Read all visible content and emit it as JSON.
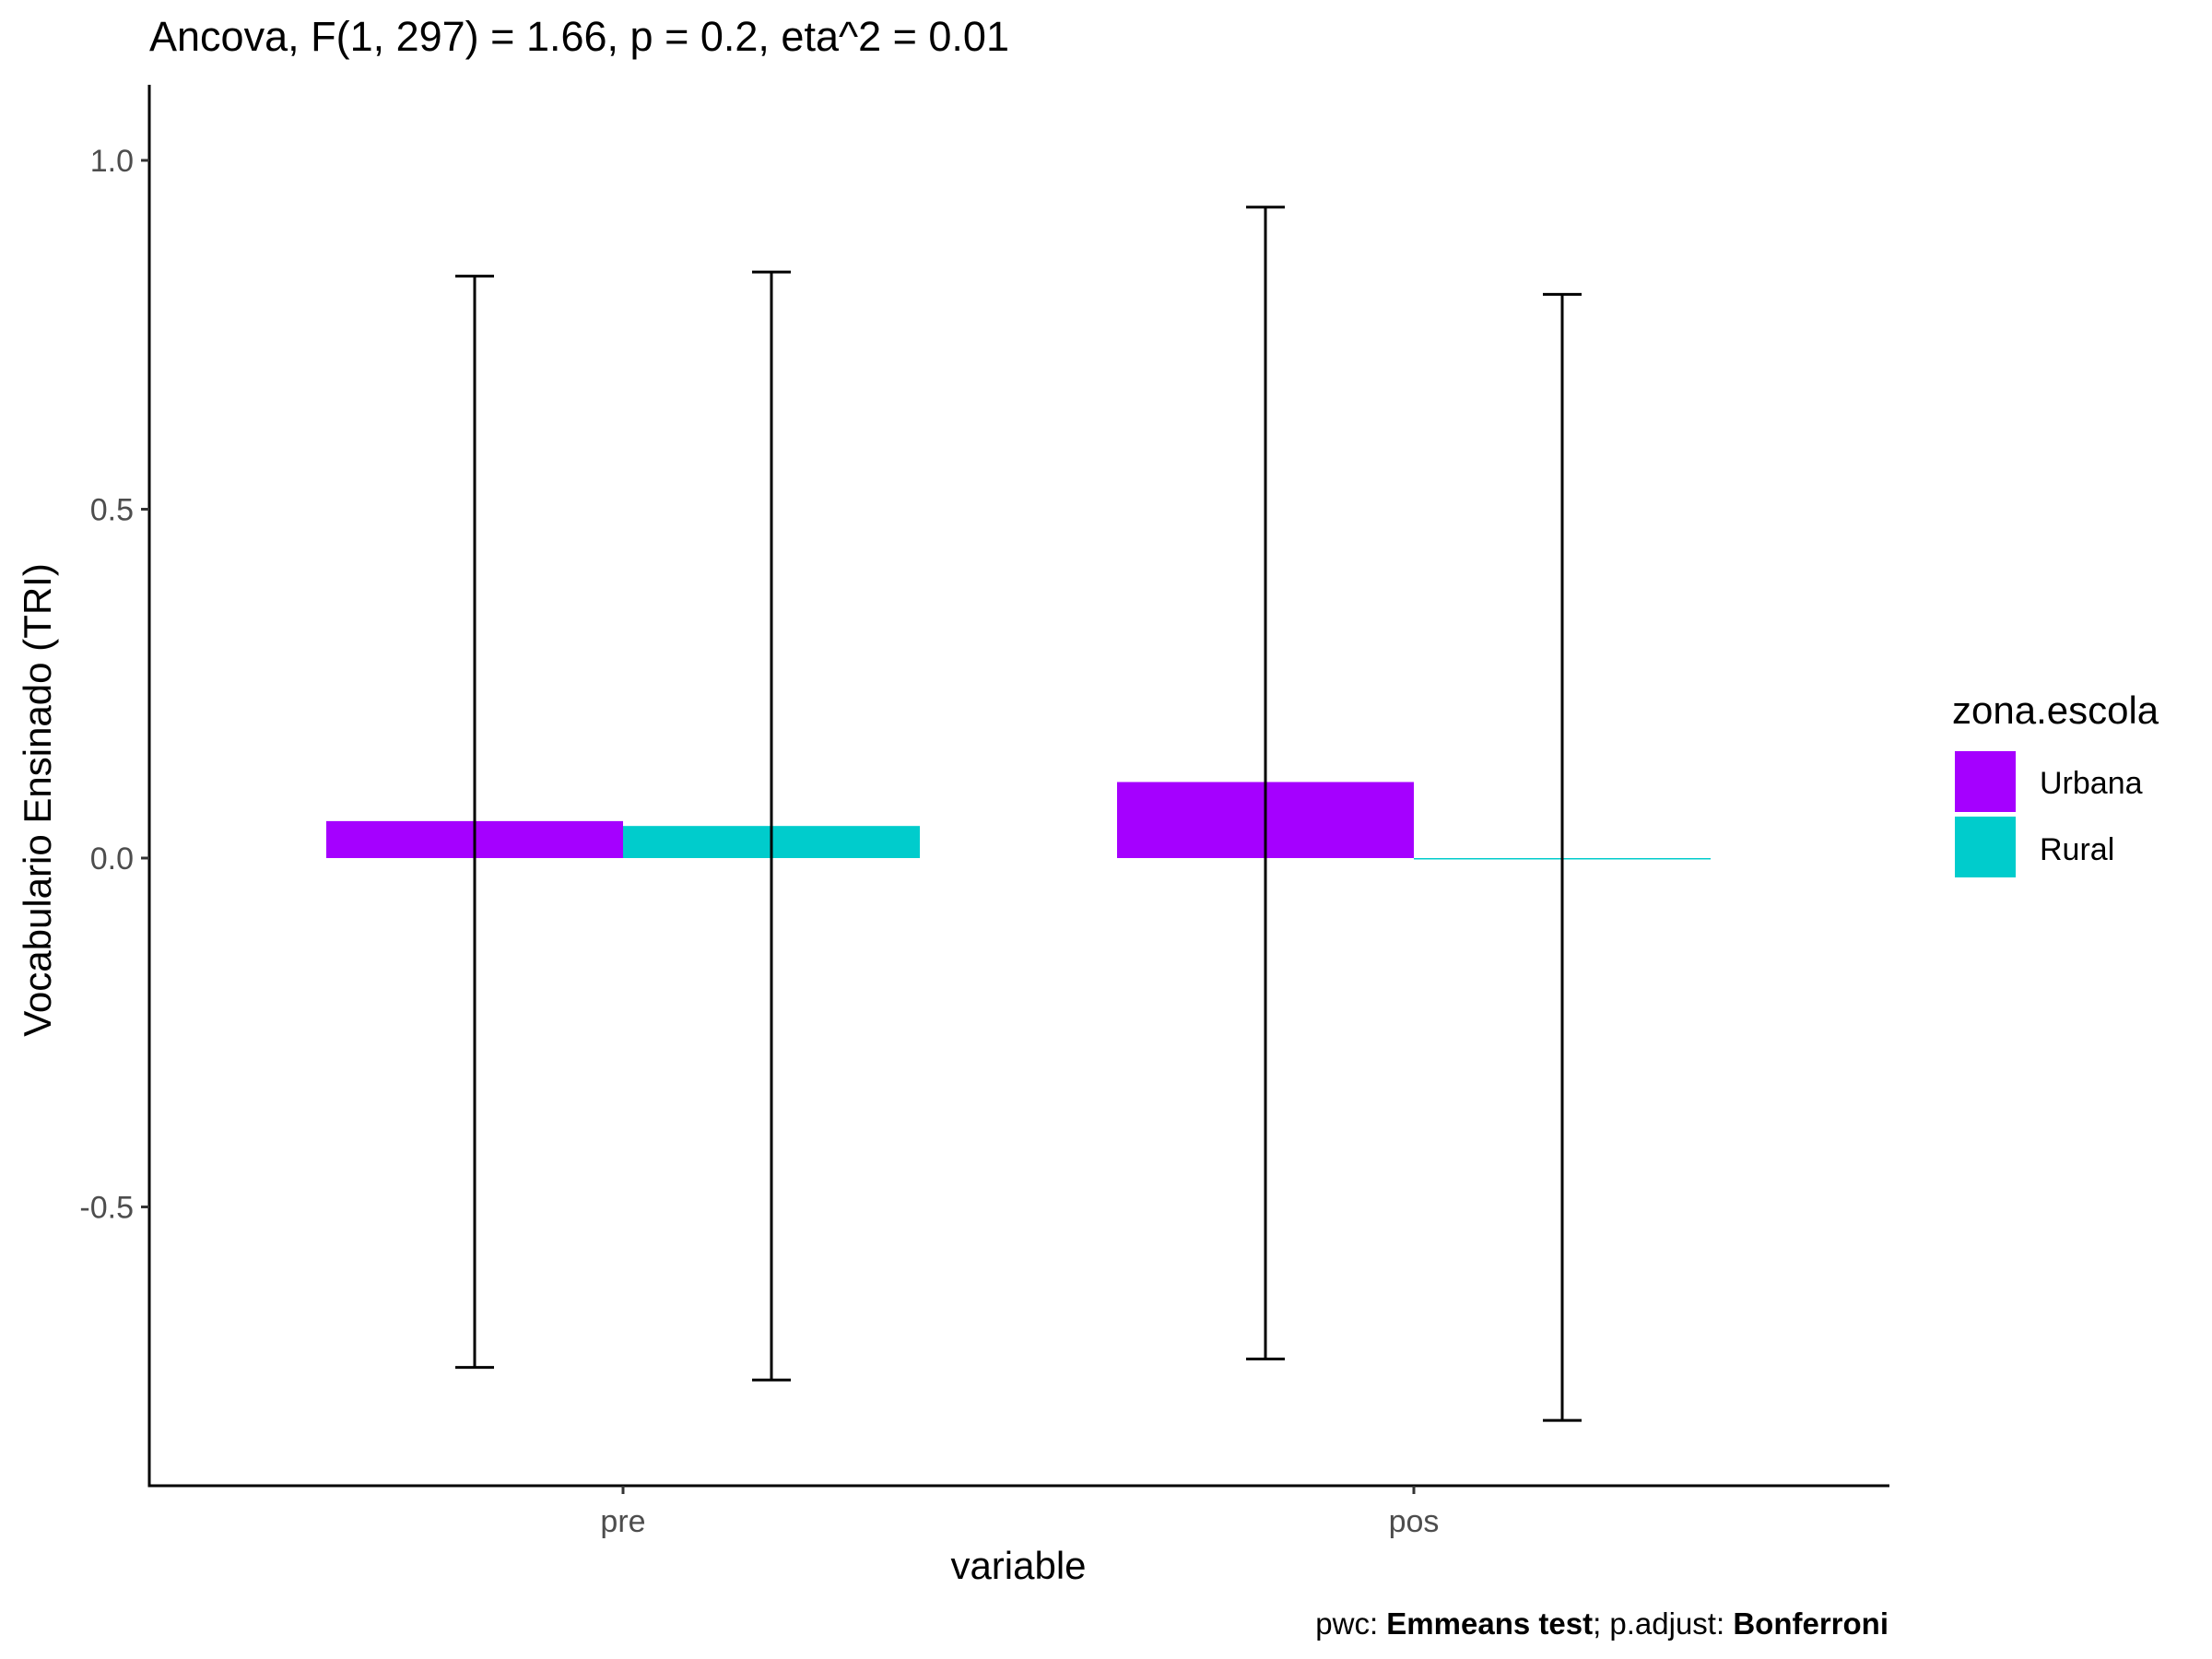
{
  "chart_data": {
    "type": "bar",
    "title": "Ancova, F(1, 297) = 1.66, p = 0.2, eta^2 = 0.01",
    "xlabel": "variable",
    "ylabel": "Vocabulario Ensinado (TRI)",
    "categories": [
      "pre",
      "pos"
    ],
    "ylim": [
      -0.89,
      1.1
    ],
    "yticks": [
      {
        "value": 1.0,
        "label": "1.0"
      },
      {
        "value": 0.5,
        "label": "0.5"
      },
      {
        "value": 0.0,
        "label": "0.0"
      },
      {
        "value": -0.5,
        "label": "-0.5"
      }
    ],
    "grid": false,
    "legend": {
      "title": "zona.escola",
      "position": "right"
    },
    "series": [
      {
        "name": "Urbana",
        "color": "#a500ff",
        "values": [
          0.053,
          0.109
        ],
        "error_low": [
          -0.73,
          -0.718
        ],
        "error_high": [
          0.834,
          0.933
        ]
      },
      {
        "name": "Rural",
        "color": "#00cccc",
        "values": [
          0.046,
          -0.001
        ],
        "error_low": [
          -0.748,
          -0.806
        ],
        "error_high": [
          0.84,
          0.808
        ]
      }
    ],
    "caption": {
      "pwc_prefix": "pwc: ",
      "pwc_value": "Emmeans test",
      "padjust_prefix": "; p.adjust: ",
      "padjust_value": "Bonferroni"
    }
  }
}
